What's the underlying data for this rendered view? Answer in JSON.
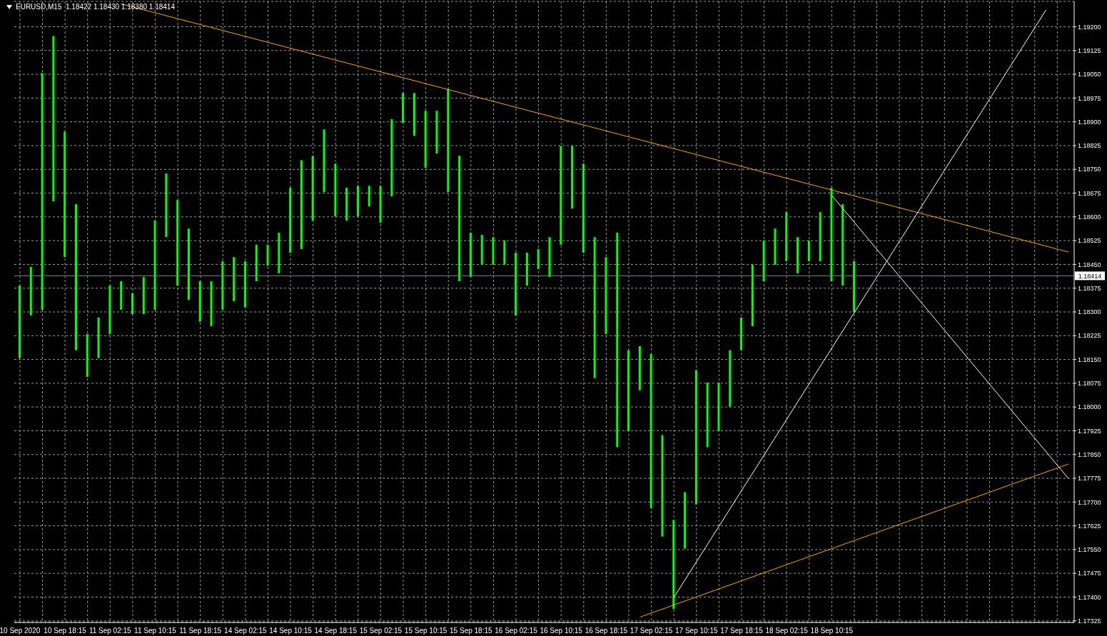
{
  "chart_data": {
    "type": "bar",
    "title": "EURUSD,M15  1.18422 1.18430 1.18380 1.18414",
    "grid": true,
    "categories": [
      "10 Sep 2020",
      null,
      null,
      null,
      "10 Sep 18:15",
      null,
      null,
      null,
      "11 Sep 02:15",
      null,
      null,
      null,
      "11 Sep 10:15",
      null,
      null,
      null,
      "11 Sep 18:15",
      null,
      null,
      null,
      "14 Sep 02:15",
      null,
      null,
      null,
      "14 Sep 10:15",
      null,
      null,
      null,
      "14 Sep 18:15",
      null,
      null,
      null,
      "15 Sep 02:15",
      null,
      null,
      null,
      "15 Sep 10:15",
      null,
      null,
      null,
      "15 Sep 18:15",
      null,
      null,
      null,
      "16 Sep 02:15",
      null,
      null,
      null,
      "16 Sep 10:15",
      null,
      null,
      null,
      "16 Sep 18:15",
      null,
      null,
      null,
      "17 Sep 02:15",
      null,
      null,
      null,
      "17 Sep 10:15",
      null,
      null,
      null,
      "17 Sep 18:15",
      null,
      null,
      null,
      "18 Sep 02:15",
      null,
      null,
      null,
      "18 Sep 10:15",
      null,
      null,
      null,
      null,
      null,
      null,
      null,
      null,
      null,
      null,
      null,
      null,
      null,
      null,
      null,
      null,
      null,
      null,
      null,
      null,
      null
    ],
    "ylim": [
      1.1732,
      1.1928
    ],
    "yticks": [
      {
        "value": 1.17325,
        "label": "1.17325"
      },
      {
        "value": 1.174,
        "label": "1.17400"
      },
      {
        "value": 1.17475,
        "label": "1.17475"
      },
      {
        "value": 1.1755,
        "label": "1.17550"
      },
      {
        "value": 1.17625,
        "label": "1.17625"
      },
      {
        "value": 1.177,
        "label": "1.17700"
      },
      {
        "value": 1.17775,
        "label": "1.17775"
      },
      {
        "value": 1.1785,
        "label": "1.17850"
      },
      {
        "value": 1.17925,
        "label": "1.17925"
      },
      {
        "value": 1.18,
        "label": "1.18000"
      },
      {
        "value": 1.18075,
        "label": "1.18075"
      },
      {
        "value": 1.1815,
        "label": "1.18150"
      },
      {
        "value": 1.18225,
        "label": "1.18225"
      },
      {
        "value": 1.183,
        "label": "1.18300"
      },
      {
        "value": 1.18375,
        "label": "1.18375"
      },
      {
        "value": 1.1845,
        "label": "1.18450"
      },
      {
        "value": 1.18525,
        "label": "1.18525"
      },
      {
        "value": 1.186,
        "label": "1.18600"
      },
      {
        "value": 1.18675,
        "label": "1.18675"
      },
      {
        "value": 1.1875,
        "label": "1.18750"
      },
      {
        "value": 1.18825,
        "label": "1.18825"
      },
      {
        "value": 1.189,
        "label": "1.18900"
      },
      {
        "value": 1.18975,
        "label": "1.18975"
      },
      {
        "value": 1.1905,
        "label": "1.19050"
      },
      {
        "value": 1.19125,
        "label": "1.19125"
      },
      {
        "value": 1.192,
        "label": "1.19200"
      }
    ],
    "ref_lines": [
      {
        "axis": "y",
        "value": 1.18414,
        "label": "1.18414",
        "color": "#778899"
      }
    ],
    "series": [
      {
        "color": "#00ff00",
        "base": [
          1.18154,
          1.18289,
          1.18307,
          1.18649,
          1.18473,
          1.18179,
          1.18095,
          1.18154,
          1.1823,
          1.18307,
          1.18293,
          1.18293,
          1.18307,
          1.18536,
          1.18383,
          1.18338,
          1.18269,
          1.18255,
          1.18307,
          1.18334,
          1.18314,
          1.18397,
          1.18446,
          1.18422,
          1.18487,
          1.18498,
          1.18588,
          1.18678,
          1.18602,
          1.18588,
          1.18602,
          1.18633,
          1.18581,
          1.18665,
          1.18896,
          1.18856,
          1.18755,
          1.188,
          1.18678,
          1.18397,
          1.1841,
          1.18449,
          1.18449,
          1.18449,
          1.18289,
          1.18383,
          1.18435,
          1.1841,
          1.18512,
          1.18626,
          1.18487,
          1.18091,
          1.1823,
          1.17873,
          1.17924,
          1.18053,
          1.17681,
          1.17591,
          1.17362,
          1.17553,
          1.17693,
          1.17873,
          1.17924,
          1.18001,
          1.18179,
          1.18255,
          1.18397,
          1.18449,
          1.1846,
          1.18422,
          1.1846,
          1.1846,
          1.18397,
          1.18383,
          1.183,
          null,
          null,
          null,
          null,
          null,
          null,
          null,
          null,
          null,
          null,
          null,
          null,
          null,
          null,
          null,
          null,
          null,
          null,
          null
        ],
        "values": [
          0.00229,
          0.00153,
          0.00747,
          0.00522,
          0.00396,
          0.00461,
          0.00135,
          0.00128,
          0.00153,
          0.0009,
          0.00066,
          0.00117,
          0.00281,
          0.00201,
          0.0027,
          0.00225,
          0.00128,
          0.00142,
          0.00153,
          0.00139,
          0.00146,
          0.00115,
          0.00066,
          0.00128,
          0.00205,
          0.00281,
          0.00205,
          0.00198,
          0.00166,
          0.00104,
          0.00096,
          0.00065,
          0.00117,
          0.00243,
          0.00095,
          0.00135,
          0.0018,
          0.00135,
          0.00326,
          0.00396,
          0.0014,
          0.00094,
          0.00087,
          0.00076,
          0.00198,
          0.00104,
          0.00063,
          0.00126,
          0.00312,
          0.00198,
          0.00281,
          0.00445,
          0.00243,
          0.00677,
          0.00255,
          0.00139,
          0.00486,
          0.0032,
          0.00281,
          0.00178,
          0.00423,
          0.00204,
          0.00153,
          0.00178,
          0.00103,
          0.00194,
          0.00128,
          0.00114,
          0.00155,
          0.00114,
          0.00065,
          0.00155,
          0.00295,
          0.00257,
          0.0016,
          null,
          null,
          null,
          null,
          null,
          null,
          null,
          null,
          null,
          null,
          null,
          null,
          null,
          null,
          null,
          null,
          null,
          null,
          null
        ]
      },
      {
        "type": "line",
        "color": "#ffa500",
        "values": [
          null,
          null,
          null,
          null,
          null,
          null,
          null,
          null,
          null,
          1.19272,
          null,
          null,
          null,
          null,
          null,
          null,
          null,
          null,
          null,
          null,
          null,
          null,
          null,
          null,
          null,
          null,
          null,
          null,
          null,
          null,
          null,
          null,
          null,
          null,
          null,
          null,
          null,
          null,
          null,
          null,
          null,
          null,
          null,
          null,
          null,
          null,
          null,
          null,
          null,
          null,
          null,
          null,
          null,
          null,
          null,
          null,
          null,
          null,
          null,
          null,
          null,
          null,
          null,
          null,
          null,
          null,
          null,
          null,
          null,
          null,
          null,
          null,
          null,
          null,
          null,
          null,
          null,
          null,
          null,
          null,
          null,
          null,
          null,
          null,
          null,
          null,
          null,
          null,
          null,
          null,
          null,
          null,
          null,
          1.18489
        ]
      },
      {
        "type": "line",
        "color": "#ffa500",
        "values": [
          null,
          null,
          null,
          null,
          null,
          null,
          null,
          null,
          null,
          null,
          null,
          null,
          null,
          null,
          null,
          null,
          null,
          null,
          null,
          null,
          null,
          null,
          null,
          null,
          null,
          null,
          null,
          null,
          null,
          null,
          null,
          null,
          null,
          null,
          null,
          null,
          null,
          null,
          null,
          null,
          null,
          null,
          null,
          null,
          null,
          null,
          null,
          null,
          null,
          null,
          null,
          null,
          null,
          null,
          null,
          1.17337,
          null,
          null,
          null,
          null,
          null,
          null,
          null,
          null,
          null,
          null,
          null,
          null,
          null,
          null,
          null,
          null,
          null,
          null,
          null,
          null,
          null,
          null,
          null,
          null,
          null,
          null,
          null,
          null,
          null,
          null,
          null,
          null,
          null,
          null,
          null,
          null,
          null,
          1.1782
        ]
      },
      {
        "type": "line",
        "color": "#ffffff",
        "values": [
          null,
          null,
          null,
          null,
          null,
          null,
          null,
          null,
          null,
          null,
          null,
          null,
          null,
          null,
          null,
          null,
          null,
          null,
          null,
          null,
          null,
          null,
          null,
          null,
          null,
          null,
          null,
          null,
          null,
          null,
          null,
          null,
          null,
          null,
          null,
          null,
          null,
          null,
          null,
          null,
          null,
          null,
          null,
          null,
          null,
          null,
          null,
          null,
          null,
          null,
          null,
          null,
          null,
          null,
          null,
          null,
          null,
          null,
          1.17399,
          null,
          null,
          null,
          null,
          null,
          null,
          null,
          null,
          null,
          null,
          null,
          null,
          null,
          null,
          null,
          null,
          null,
          null,
          null,
          null,
          null,
          null,
          null,
          null,
          null,
          null,
          null,
          null,
          null,
          null,
          null,
          null,
          1.19253,
          null,
          null
        ]
      },
      {
        "type": "line",
        "color": "#ffffff",
        "values": [
          null,
          null,
          null,
          null,
          null,
          null,
          null,
          null,
          null,
          null,
          null,
          null,
          null,
          null,
          null,
          null,
          null,
          null,
          null,
          null,
          null,
          null,
          null,
          null,
          null,
          null,
          null,
          null,
          null,
          null,
          null,
          null,
          null,
          null,
          null,
          null,
          null,
          null,
          null,
          null,
          null,
          null,
          null,
          null,
          null,
          null,
          null,
          null,
          null,
          null,
          null,
          null,
          null,
          null,
          null,
          null,
          null,
          null,
          null,
          null,
          null,
          null,
          null,
          null,
          null,
          null,
          null,
          null,
          null,
          null,
          null,
          null,
          1.18668,
          null,
          null,
          null,
          null,
          null,
          null,
          null,
          null,
          null,
          null,
          null,
          null,
          null,
          null,
          null,
          null,
          null,
          null,
          null,
          null,
          1.17774
        ]
      }
    ]
  }
}
